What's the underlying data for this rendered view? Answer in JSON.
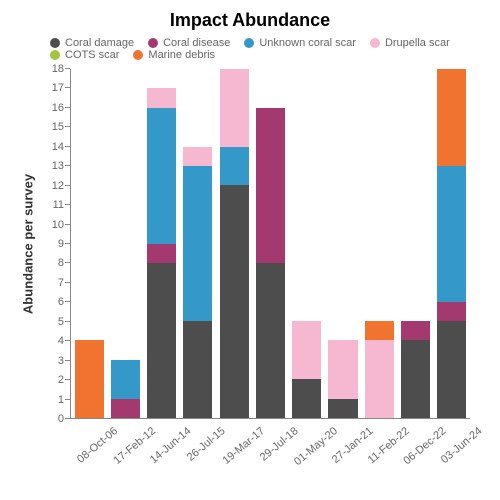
{
  "chart": {
    "type": "stacked-bar",
    "title": "Impact Abundance",
    "title_fontsize": 18,
    "ylabel": "Abundance per survey",
    "label_fontsize": 13,
    "tick_fontsize": 11,
    "legend_fontsize": 11,
    "background_color": "#ffffff",
    "axis_color": "#888888",
    "tick_text_color": "#666666",
    "ylim": [
      0,
      18
    ],
    "ytick_step": 1,
    "bar_width": 0.9,
    "series": [
      {
        "key": "coral_damage",
        "label": "Coral damage",
        "color": "#4d4d4d"
      },
      {
        "key": "coral_disease",
        "label": "Coral disease",
        "color": "#a3396f"
      },
      {
        "key": "unknown_scar",
        "label": "Unknown coral scar",
        "color": "#3498c9"
      },
      {
        "key": "drupella_scar",
        "label": "Drupella scar",
        "color": "#f5b8d0"
      },
      {
        "key": "cots_scar",
        "label": "COTS scar",
        "color": "#a3c43c"
      },
      {
        "key": "marine_debris",
        "label": "Marine debris",
        "color": "#f0742f"
      }
    ],
    "categories": [
      "08-Oct-06",
      "17-Feb-12",
      "14-Jun-14",
      "26-Jul-15",
      "19-Mar-17",
      "29-Jul-18",
      "01-May-20",
      "27-Jan-21",
      "11-Feb-22",
      "06-Dec-22",
      "03-Jun-24"
    ],
    "data": {
      "coral_damage": [
        0,
        0,
        8,
        5,
        12,
        8,
        2,
        1,
        0,
        4,
        5
      ],
      "coral_disease": [
        0,
        1,
        1,
        0,
        0,
        8,
        0,
        0,
        0,
        1,
        1
      ],
      "unknown_scar": [
        0,
        2,
        7,
        8,
        2,
        0,
        0,
        0,
        0,
        0,
        7
      ],
      "drupella_scar": [
        0,
        0,
        1,
        1,
        4,
        0,
        3,
        3,
        4,
        0,
        0
      ],
      "cots_scar": [
        0,
        0,
        0,
        0,
        0,
        0,
        0,
        0,
        0,
        0,
        0
      ],
      "marine_debris": [
        4,
        0,
        0,
        0,
        0,
        0,
        0,
        0,
        1,
        0,
        5
      ]
    }
  }
}
